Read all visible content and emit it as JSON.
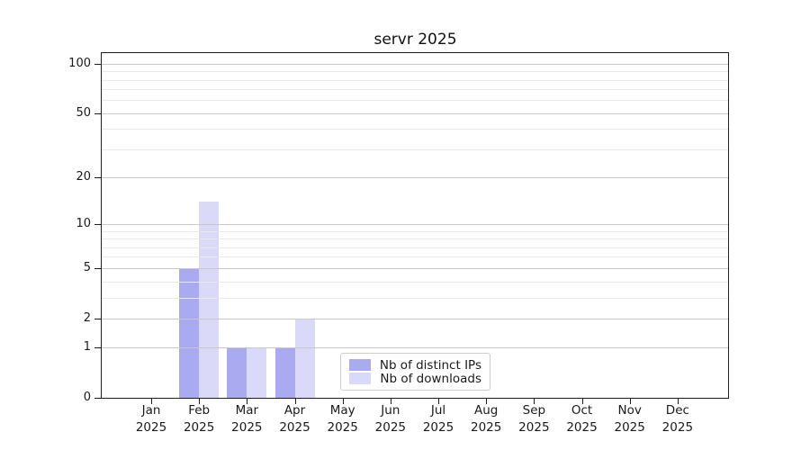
{
  "chart_data": {
    "type": "bar",
    "title": "servr 2025",
    "year_label": "2025",
    "categories": [
      "Jan",
      "Feb",
      "Mar",
      "Apr",
      "May",
      "Jun",
      "Jul",
      "Aug",
      "Sep",
      "Oct",
      "Nov",
      "Dec"
    ],
    "series": [
      {
        "name": "Nb of distinct IPs",
        "color": "#aaaaf0",
        "values": [
          0,
          5,
          1,
          1,
          0,
          0,
          0,
          0,
          0,
          0,
          0,
          0
        ]
      },
      {
        "name": "Nb of downloads",
        "color": "#dadaf8",
        "values": [
          0,
          14,
          1,
          2,
          0,
          0,
          0,
          0,
          0,
          0,
          0,
          0
        ]
      }
    ],
    "xlabel": "",
    "ylabel": "",
    "y_axis": {
      "scale": "log1p",
      "major_ticks": [
        0,
        1,
        2,
        5,
        10,
        20,
        50,
        100
      ],
      "minor_gridlines": [
        3,
        4,
        6,
        7,
        8,
        9,
        30,
        40,
        60,
        70,
        80,
        90
      ],
      "ylim": [
        0,
        116
      ]
    },
    "grid": true,
    "legend_position": "lower-center-inside",
    "colors": {
      "axis": "#1f1f1f",
      "major_grid": "#c8c8c8",
      "minor_grid": "#e9e9e9",
      "text": "#1a1a1a",
      "legend_border": "#cccccc"
    }
  }
}
